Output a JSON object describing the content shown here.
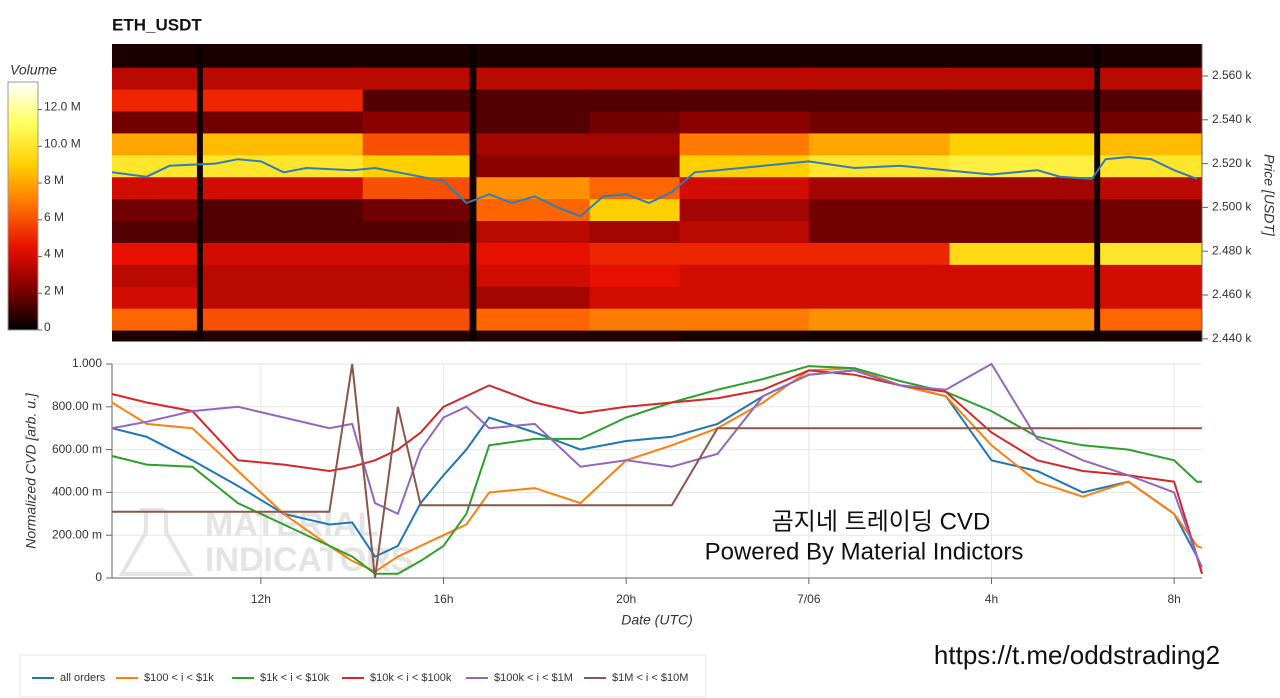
{
  "chart_data": [
    {
      "type": "heatmap",
      "title": "ETH_USDT",
      "ylabel": "Price [USDT]",
      "xlim": [
        8.74,
        32.61
      ],
      "x_bins": [
        8.74,
        10.6,
        10.73,
        14.23,
        16.57,
        16.72,
        19.2,
        21.17,
        24,
        27.08,
        30.25,
        30.38,
        32.61
      ],
      "y_bins": [
        2439,
        2444,
        2454,
        2464,
        2474,
        2484,
        2494,
        2504,
        2514,
        2524,
        2534,
        2544,
        2554,
        2564,
        2574.6
      ],
      "ylim": [
        2439,
        2574.6
      ],
      "yticks": [
        {
          "value": 2440,
          "label": "2.440 k"
        },
        {
          "value": 2460,
          "label": "2.460 k"
        },
        {
          "value": 2480,
          "label": "2.480 k"
        },
        {
          "value": 2500,
          "label": "2.500 k"
        },
        {
          "value": 2520,
          "label": "2.520 k"
        },
        {
          "value": 2540,
          "label": "2.540 k"
        },
        {
          "value": 2560,
          "label": "2.560 k"
        }
      ],
      "z": [
        [
          500000,
          200000,
          600000,
          600000,
          200000,
          600000,
          600000,
          400000,
          300000,
          300000,
          200000,
          400000
        ],
        [
          6500000,
          300000,
          6000000,
          6000000,
          300000,
          6500000,
          7000000,
          7000000,
          7500000,
          7500000,
          300000,
          6500000
        ],
        [
          4000000,
          300000,
          3500000,
          3500000,
          300000,
          3000000,
          4000000,
          4000000,
          4000000,
          4000000,
          300000,
          4000000
        ],
        [
          3500000,
          300000,
          3500000,
          3500000,
          300000,
          4000000,
          4500000,
          4000000,
          4000000,
          4000000,
          300000,
          4000000
        ],
        [
          4500000,
          300000,
          4000000,
          4000000,
          300000,
          4500000,
          5000000,
          5000000,
          5000000,
          9500000,
          300000,
          10000000
        ],
        [
          1500000,
          300000,
          1500000,
          1500000,
          300000,
          3500000,
          3000000,
          3500000,
          2000000,
          2000000,
          300000,
          2000000
        ],
        [
          2000000,
          300000,
          1500000,
          2000000,
          300000,
          6500000,
          9000000,
          3000000,
          2000000,
          2000000,
          300000,
          2000000
        ],
        [
          4000000,
          300000,
          4000000,
          6000000,
          300000,
          7500000,
          6500000,
          4000000,
          3000000,
          3000000,
          300000,
          3500000
        ],
        [
          10000000,
          300000,
          10000000,
          9000000,
          300000,
          2500000,
          2500000,
          9000000,
          10000000,
          10500000,
          300000,
          10000000
        ],
        [
          8000000,
          300000,
          8500000,
          6000000,
          300000,
          3000000,
          3000000,
          7000000,
          8000000,
          9000000,
          300000,
          8500000
        ],
        [
          2000000,
          300000,
          2000000,
          2500000,
          300000,
          1500000,
          2000000,
          2500000,
          2000000,
          2000000,
          300000,
          2000000
        ],
        [
          5000000,
          300000,
          5000000,
          1500000,
          300000,
          1500000,
          1500000,
          1500000,
          1500000,
          1500000,
          300000,
          1500000
        ],
        [
          3500000,
          300000,
          3500000,
          3500000,
          300000,
          3500000,
          3500000,
          3500000,
          3500000,
          3500000,
          300000,
          3500000
        ],
        [
          500000,
          200000,
          500000,
          500000,
          200000,
          500000,
          500000,
          500000,
          500000,
          500000,
          200000,
          500000
        ]
      ],
      "colormap": [
        "#000000",
        "#800000",
        "#e81000",
        "#ff7000",
        "#ffd000",
        "#ffff60",
        "#ffffff"
      ],
      "colorbar": {
        "label": "Volume",
        "lim": [
          0,
          13500000
        ],
        "ticks": [
          0,
          {
            "value": 2000000,
            "label": "2 M"
          },
          {
            "value": 4000000,
            "label": "4 M"
          },
          {
            "value": 6000000,
            "label": "6 M"
          },
          {
            "value": 8000000,
            "label": "8 M"
          },
          {
            "value": 10000000,
            "label": "10.0 M"
          },
          {
            "value": 12000000,
            "label": "12.0 M"
          }
        ]
      },
      "price_line": {
        "color": "#2e7fb8",
        "x": [
          8.74,
          9.5,
          10,
          11,
          11.5,
          12,
          12.5,
          13,
          14,
          14.5,
          15,
          15.5,
          16,
          16.5,
          17,
          17.5,
          18,
          18.5,
          19,
          19.5,
          20,
          20.5,
          21,
          21.5,
          22,
          23,
          24,
          25,
          26,
          27,
          28,
          29,
          29.5,
          30.2,
          30.5,
          31,
          31.5,
          32,
          32.5
        ],
        "values": [
          2516,
          2514,
          2519,
          2520,
          2522,
          2521,
          2516,
          2518,
          2517,
          2518,
          2516,
          2514,
          2512,
          2502,
          2506,
          2502,
          2505,
          2500,
          2496,
          2505,
          2506,
          2502,
          2507,
          2516,
          2517,
          2519,
          2521,
          2518,
          2519,
          2517,
          2515,
          2517,
          2514,
          2513,
          2522,
          2523,
          2522,
          2517,
          2513
        ]
      }
    },
    {
      "type": "line",
      "ylabel": "Normalized CVD [arb. u.]",
      "xlabel": "Date (UTC)",
      "xlim": [
        8.74,
        32.61
      ],
      "xticks": [
        {
          "value": 12,
          "label": "12h"
        },
        {
          "value": 16,
          "label": "16h"
        },
        {
          "value": 20,
          "label": "20h"
        },
        {
          "value": 24,
          "label": "7/06"
        },
        {
          "value": 28,
          "label": "4h"
        },
        {
          "value": 32,
          "label": "8h"
        }
      ],
      "ylim": [
        0,
        1
      ],
      "yticks": [
        0,
        {
          "value": 0.2,
          "label": "200.00 m"
        },
        {
          "value": 0.4,
          "label": "400.00 m"
        },
        {
          "value": 0.6,
          "label": "600.00 m"
        },
        {
          "value": 0.8,
          "label": "800.00 m"
        },
        {
          "value": 1,
          "label": "1.000"
        }
      ],
      "grid": true,
      "x": [
        8.74,
        9.5,
        10.5,
        11.5,
        12.5,
        13.5,
        14,
        14.5,
        15,
        15.5,
        16,
        16.5,
        17,
        18,
        19,
        20,
        21,
        22,
        23,
        24,
        25,
        26,
        27,
        28,
        29,
        30,
        31,
        32,
        32.5,
        32.61
      ],
      "series": [
        {
          "name": "all orders",
          "color": "#1f77b4",
          "values": [
            0.7,
            0.66,
            0.55,
            0.43,
            0.3,
            0.25,
            0.26,
            0.1,
            0.15,
            0.35,
            0.48,
            0.6,
            0.75,
            0.68,
            0.6,
            0.64,
            0.66,
            0.72,
            0.85,
            0.95,
            0.97,
            0.9,
            0.85,
            0.55,
            0.5,
            0.4,
            0.45,
            0.3,
            0.1,
            0.02
          ]
        },
        {
          "name": "$100 < i < $1k",
          "color": "#ff7f0e",
          "values": [
            0.82,
            0.72,
            0.7,
            0.5,
            0.3,
            0.15,
            0.08,
            0.03,
            0.1,
            0.15,
            0.2,
            0.25,
            0.4,
            0.42,
            0.35,
            0.55,
            0.62,
            0.7,
            0.82,
            0.97,
            0.98,
            0.9,
            0.85,
            0.62,
            0.45,
            0.38,
            0.45,
            0.3,
            0.15,
            0.14
          ]
        },
        {
          "name": "$1k < i < $10k",
          "color": "#2ca02c",
          "values": [
            0.57,
            0.53,
            0.52,
            0.35,
            0.25,
            0.15,
            0.1,
            0.02,
            0.02,
            0.08,
            0.15,
            0.3,
            0.62,
            0.65,
            0.65,
            0.75,
            0.82,
            0.88,
            0.93,
            0.99,
            0.98,
            0.92,
            0.87,
            0.78,
            0.66,
            0.62,
            0.6,
            0.55,
            0.45,
            0.45
          ]
        },
        {
          "name": "$10k < i < $100k",
          "color": "#d62728",
          "values": [
            0.86,
            0.82,
            0.78,
            0.55,
            0.53,
            0.5,
            0.52,
            0.55,
            0.6,
            0.68,
            0.8,
            0.85,
            0.9,
            0.82,
            0.77,
            0.8,
            0.82,
            0.84,
            0.88,
            0.97,
            0.95,
            0.9,
            0.87,
            0.68,
            0.55,
            0.5,
            0.48,
            0.45,
            0.1,
            0.02
          ]
        },
        {
          "name": "$100k < i < $1M",
          "color": "#9467bd",
          "values": [
            0.7,
            0.73,
            0.78,
            0.8,
            0.75,
            0.7,
            0.72,
            0.35,
            0.3,
            0.6,
            0.75,
            0.8,
            0.7,
            0.72,
            0.52,
            0.55,
            0.52,
            0.58,
            0.85,
            0.95,
            0.97,
            0.9,
            0.88,
            1.0,
            0.65,
            0.55,
            0.48,
            0.4,
            0.1,
            0.05
          ]
        },
        {
          "name": "$1M < i < $10M",
          "color": "#8c564b",
          "values": [
            0.31,
            0.31,
            0.31,
            0.31,
            0.31,
            0.31,
            1.0,
            0.0,
            0.8,
            0.34,
            0.34,
            0.34,
            0.34,
            0.34,
            0.34,
            0.34,
            0.34,
            0.7,
            0.7,
            0.7,
            0.7,
            0.7,
            0.7,
            0.7,
            0.7,
            0.7,
            0.7,
            0.7,
            0.7,
            0.7
          ]
        }
      ],
      "annotations": [
        "곰지네 트레이딩 CVD",
        "Powered By Material Indictors"
      ],
      "watermark": [
        "MATERIAL",
        "INDICATORS"
      ]
    }
  ],
  "footer": {
    "url": "https://t.me/oddstrading2"
  }
}
